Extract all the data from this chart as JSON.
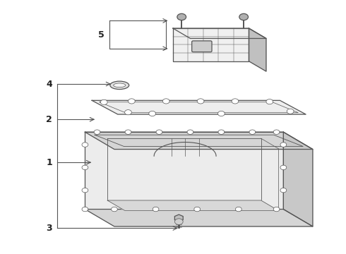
{
  "background_color": "#ffffff",
  "line_color": "#555555",
  "text_color": "#222222",
  "fig_width": 4.9,
  "fig_height": 3.6,
  "dpi": 100
}
